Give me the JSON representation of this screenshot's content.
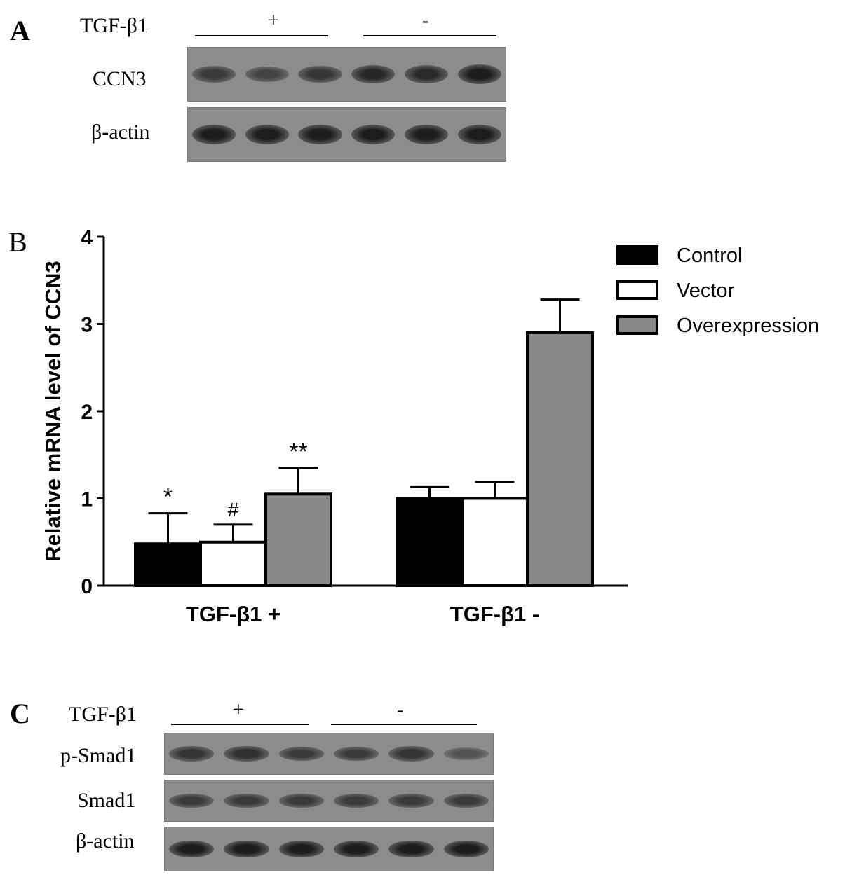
{
  "panel_a": {
    "letter": "A",
    "treatment_label": "TGF-β1",
    "treatment_plus": "+",
    "treatment_minus": "-",
    "rows": [
      {
        "label": "CCN3",
        "band_intensities": [
          0.55,
          0.45,
          0.6,
          0.75,
          0.72,
          0.85
        ]
      },
      {
        "label": "β-actin",
        "band_intensities": [
          0.85,
          0.85,
          0.85,
          0.85,
          0.85,
          0.85
        ]
      }
    ]
  },
  "panel_b": {
    "letter": "B"
  },
  "chart_data": {
    "type": "bar",
    "ylabel": "Relative mRNA level of CCN3",
    "xlabel": "",
    "ylim": [
      0,
      4
    ],
    "yticks": [
      "0",
      "1",
      "2",
      "3",
      "4"
    ],
    "categories": [
      "TGF-β1 +",
      "TGF-β1 -"
    ],
    "legend_position": "top-right",
    "series": [
      {
        "name": "Control",
        "color": "#000000",
        "values": [
          0.48,
          1.0
        ],
        "errors": [
          0.35,
          0.13
        ],
        "annotations": [
          "*",
          ""
        ]
      },
      {
        "name": "Vector",
        "color": "#ffffff",
        "values": [
          0.5,
          1.0
        ],
        "errors": [
          0.2,
          0.19
        ],
        "annotations": [
          "#",
          ""
        ]
      },
      {
        "name": "Overexpression",
        "color": "#888888",
        "values": [
          1.05,
          2.9
        ],
        "errors": [
          0.3,
          0.38
        ],
        "annotations": [
          "**",
          ""
        ]
      }
    ]
  },
  "panel_c": {
    "letter": "C",
    "treatment_label": "TGF-β1",
    "treatment_plus": "+",
    "treatment_minus": "-",
    "rows": [
      {
        "label": "p-Smad1",
        "band_intensities": [
          0.6,
          0.65,
          0.55,
          0.55,
          0.6,
          0.3
        ]
      },
      {
        "label": "Smad1",
        "band_intensities": [
          0.55,
          0.55,
          0.55,
          0.55,
          0.55,
          0.55
        ]
      },
      {
        "label": "β-actin",
        "band_intensities": [
          0.85,
          0.85,
          0.85,
          0.85,
          0.85,
          0.85
        ]
      }
    ]
  }
}
